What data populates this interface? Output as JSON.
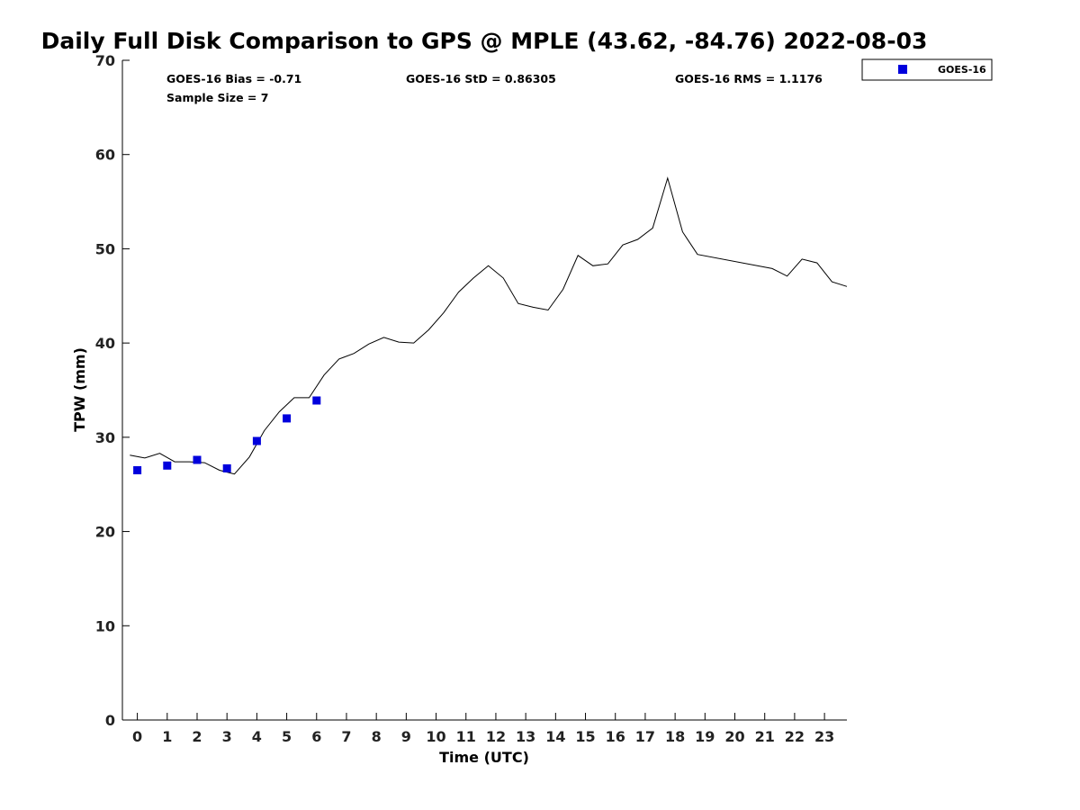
{
  "chart_data": {
    "type": "line",
    "title": "Daily Full Disk Comparison to GPS @ MPLE (43.62, -84.76) 2022-08-03",
    "xlabel": "Time (UTC)",
    "ylabel": "TPW (mm)",
    "xlim": [
      -0.5,
      23.75
    ],
    "ylim": [
      0,
      70
    ],
    "yticks": [
      0,
      10,
      20,
      30,
      40,
      50,
      60,
      70
    ],
    "xticks": [
      0,
      1,
      2,
      3,
      4,
      5,
      6,
      7,
      8,
      9,
      10,
      11,
      12,
      13,
      14,
      15,
      16,
      17,
      18,
      19,
      20,
      21,
      22,
      23
    ],
    "grid": false,
    "legend": {
      "position": "top-right",
      "entries": [
        "GOES-16"
      ]
    },
    "stats": [
      "GOES-16 Bias = -0.71",
      "GOES-16 StD = 0.86305",
      "GOES-16 RMS = 1.1176",
      "Sample Size = 7"
    ],
    "series": [
      {
        "style": "line",
        "color": "#000000",
        "x": [
          -0.25,
          0.25,
          0.75,
          1.25,
          1.75,
          2.25,
          2.75,
          3.25,
          3.75,
          4.25,
          4.75,
          5.25,
          5.75,
          6.25,
          6.75,
          7.25,
          7.75,
          8.25,
          8.75,
          9.25,
          9.75,
          10.25,
          10.75,
          11.25,
          11.75,
          12.25,
          12.75,
          13.25,
          13.75,
          14.25,
          14.75,
          15.25,
          15.75,
          16.25,
          16.75,
          17.25,
          17.75,
          18.25,
          18.75,
          21.25,
          21.75,
          22.25,
          22.75,
          23.25,
          23.75
        ],
        "values": [
          28.1,
          27.8,
          28.3,
          27.4,
          27.4,
          27.3,
          26.5,
          26.1,
          27.9,
          30.7,
          32.7,
          34.2,
          34.2,
          36.6,
          38.3,
          38.9,
          39.9,
          40.6,
          40.1,
          40.0,
          41.4,
          43.2,
          45.4,
          46.9,
          48.2,
          46.9,
          44.2,
          43.8,
          43.5,
          45.7,
          49.3,
          48.2,
          48.4,
          50.4,
          51.0,
          52.2,
          57.5,
          51.8,
          49.4,
          47.9,
          47.1,
          48.9,
          48.5,
          46.5,
          46.0
        ]
      },
      {
        "name": "GOES-16",
        "style": "markers",
        "color": "#0000dd",
        "x": [
          0,
          1,
          2,
          3,
          4,
          5,
          6
        ],
        "values": [
          26.5,
          27.0,
          27.6,
          26.7,
          29.6,
          32.0,
          33.9
        ]
      }
    ]
  }
}
